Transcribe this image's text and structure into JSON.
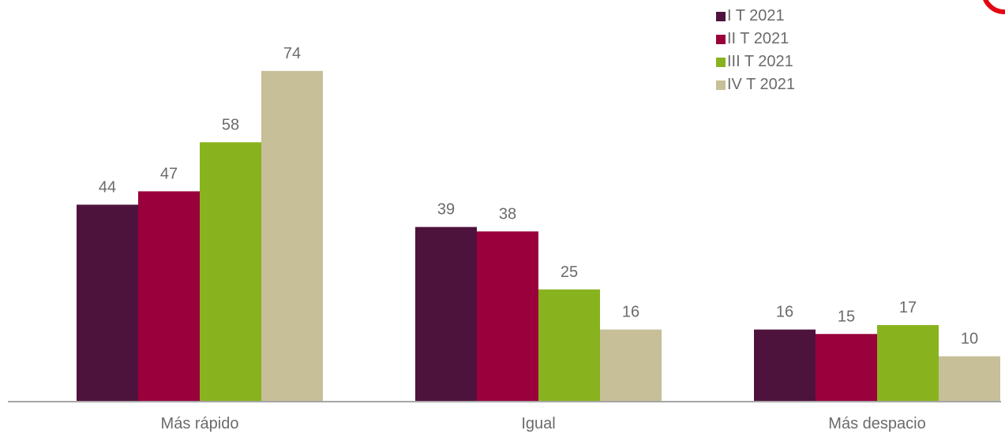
{
  "chart_data": {
    "type": "bar",
    "categories": [
      "Más rápido",
      "Igual",
      "Más despacio"
    ],
    "series": [
      {
        "name": "I T 2021",
        "color": "#4e133d",
        "values": [
          44,
          39,
          16
        ]
      },
      {
        "name": "II T 2021",
        "color": "#99003c",
        "values": [
          47,
          38,
          15
        ]
      },
      {
        "name": "III T 2021",
        "color": "#88b31e",
        "values": [
          58,
          25,
          17
        ]
      },
      {
        "name": "IV T 2021",
        "color": "#c6bf98",
        "values": [
          74,
          16,
          10
        ]
      }
    ],
    "title": "",
    "xlabel": "",
    "ylabel": "",
    "ylim": [
      0,
      80
    ],
    "grid": false,
    "legend_position": "top-right"
  },
  "colors": {
    "axis": "#a6a6a6",
    "label_text": "#6b6b6b",
    "badge": "#e30613"
  }
}
